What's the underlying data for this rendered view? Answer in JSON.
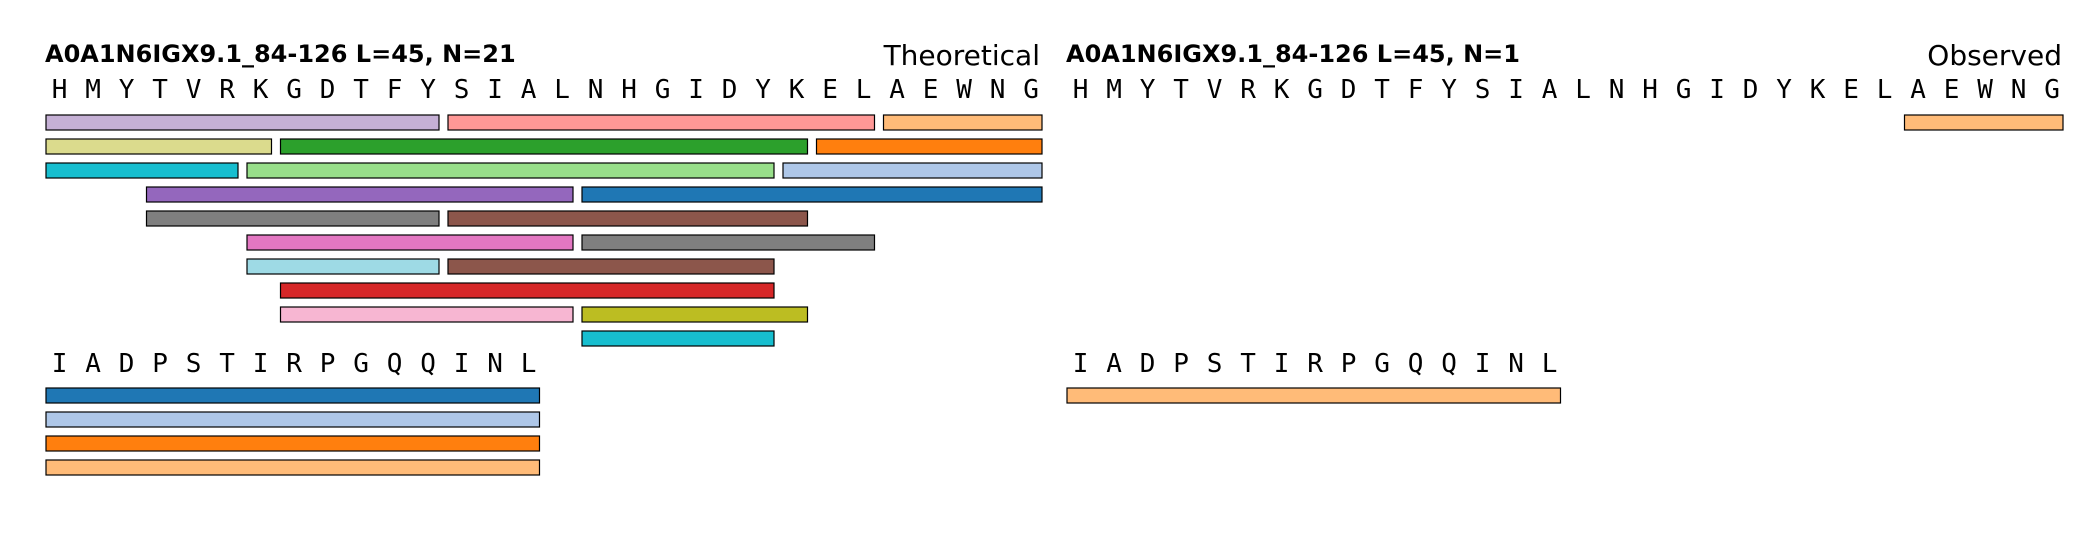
{
  "panels": [
    {
      "id": "theoretical",
      "title": "A0A1N6IGX9.1_84-126  L=45, N=21",
      "mode": "Theoretical",
      "rows": [
        {
          "residues": [
            "H",
            "M",
            "Y",
            "T",
            "V",
            "R",
            "K",
            "G",
            "D",
            "T",
            "F",
            "Y",
            "S",
            "I",
            "A",
            "L",
            "N",
            "H",
            "G",
            "I",
            "D",
            "Y",
            "K",
            "E",
            "L",
            "A",
            "E",
            "W",
            "N",
            "G"
          ],
          "peptides": [
            {
              "start": 0,
              "end": 11,
              "lane": 0,
              "color": "#c5b0d5"
            },
            {
              "start": 12,
              "end": 24,
              "lane": 0,
              "color": "#ff9896"
            },
            {
              "start": 25,
              "end": 29,
              "lane": 0,
              "color": "#ffbb78"
            },
            {
              "start": 0,
              "end": 6,
              "lane": 1,
              "color": "#dbdb8d"
            },
            {
              "start": 7,
              "end": 22,
              "lane": 1,
              "color": "#2ca02c"
            },
            {
              "start": 23,
              "end": 29,
              "lane": 1,
              "color": "#ff7f0e"
            },
            {
              "start": 0,
              "end": 5,
              "lane": 2,
              "color": "#17becf"
            },
            {
              "start": 6,
              "end": 21,
              "lane": 2,
              "color": "#98df8a"
            },
            {
              "start": 22,
              "end": 29,
              "lane": 2,
              "color": "#aec7e8"
            },
            {
              "start": 3,
              "end": 15,
              "lane": 3,
              "color": "#9467bd"
            },
            {
              "start": 16,
              "end": 29,
              "lane": 3,
              "color": "#1f77b4"
            },
            {
              "start": 3,
              "end": 11,
              "lane": 4,
              "color": "#7f7f7f"
            },
            {
              "start": 12,
              "end": 22,
              "lane": 4,
              "color": "#8c564b"
            },
            {
              "start": 6,
              "end": 15,
              "lane": 5,
              "color": "#e377c2"
            },
            {
              "start": 16,
              "end": 24,
              "lane": 5,
              "color": "#7f7f7f"
            },
            {
              "start": 6,
              "end": 11,
              "lane": 6,
              "color": "#9edae5"
            },
            {
              "start": 12,
              "end": 21,
              "lane": 6,
              "color": "#8c564b"
            },
            {
              "start": 7,
              "end": 21,
              "lane": 7,
              "color": "#d62728"
            },
            {
              "start": 7,
              "end": 15,
              "lane": 8,
              "color": "#f7b6d2"
            },
            {
              "start": 16,
              "end": 22,
              "lane": 8,
              "color": "#bcbd22"
            },
            {
              "start": 16,
              "end": 21,
              "lane": 9,
              "color": "#17becf"
            }
          ]
        },
        {
          "residues": [
            "I",
            "A",
            "D",
            "P",
            "S",
            "T",
            "I",
            "R",
            "P",
            "G",
            "Q",
            "Q",
            "I",
            "N",
            "L"
          ],
          "peptides": [
            {
              "start": 0,
              "end": 14,
              "lane": 0,
              "color": "#1f77b4"
            },
            {
              "start": 0,
              "end": 14,
              "lane": 1,
              "color": "#aec7e8"
            },
            {
              "start": 0,
              "end": 14,
              "lane": 2,
              "color": "#ff7f0e"
            },
            {
              "start": 0,
              "end": 14,
              "lane": 3,
              "color": "#ffbb78"
            }
          ]
        }
      ]
    },
    {
      "id": "observed",
      "title": "A0A1N6IGX9.1_84-126  L=45, N=1",
      "mode": "Observed",
      "rows": [
        {
          "residues": [
            "H",
            "M",
            "Y",
            "T",
            "V",
            "R",
            "K",
            "G",
            "D",
            "T",
            "F",
            "Y",
            "S",
            "I",
            "A",
            "L",
            "N",
            "H",
            "G",
            "I",
            "D",
            "Y",
            "K",
            "E",
            "L",
            "A",
            "E",
            "W",
            "N",
            "G"
          ],
          "peptides": [
            {
              "start": 25,
              "end": 29,
              "lane": 0,
              "color": "#ffbb78"
            }
          ]
        },
        {
          "residues": [
            "I",
            "A",
            "D",
            "P",
            "S",
            "T",
            "I",
            "R",
            "P",
            "G",
            "Q",
            "Q",
            "I",
            "N",
            "L"
          ],
          "peptides": [
            {
              "start": 0,
              "end": 14,
              "lane": 0,
              "color": "#ffbb78"
            }
          ]
        }
      ]
    }
  ]
}
